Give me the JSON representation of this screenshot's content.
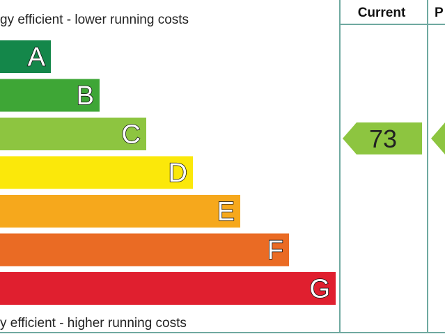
{
  "header": {
    "top_note": "gy efficient - lower running costs",
    "bottom_note": "y efficient - higher running costs",
    "current_label": "Current",
    "potential_label": "P"
  },
  "bands": [
    {
      "letter": "A",
      "color": "#14874a"
    },
    {
      "letter": "B",
      "color": "#3ea636"
    },
    {
      "letter": "C",
      "color": "#8dc540"
    },
    {
      "letter": "D",
      "color": "#fbe80a"
    },
    {
      "letter": "E",
      "color": "#f6a81c"
    },
    {
      "letter": "F",
      "color": "#ea6b24"
    },
    {
      "letter": "G",
      "color": "#e01f2f"
    }
  ],
  "current": {
    "value": 73,
    "color": "#8dc540"
  },
  "potential": {
    "color": "#8dc540"
  }
}
